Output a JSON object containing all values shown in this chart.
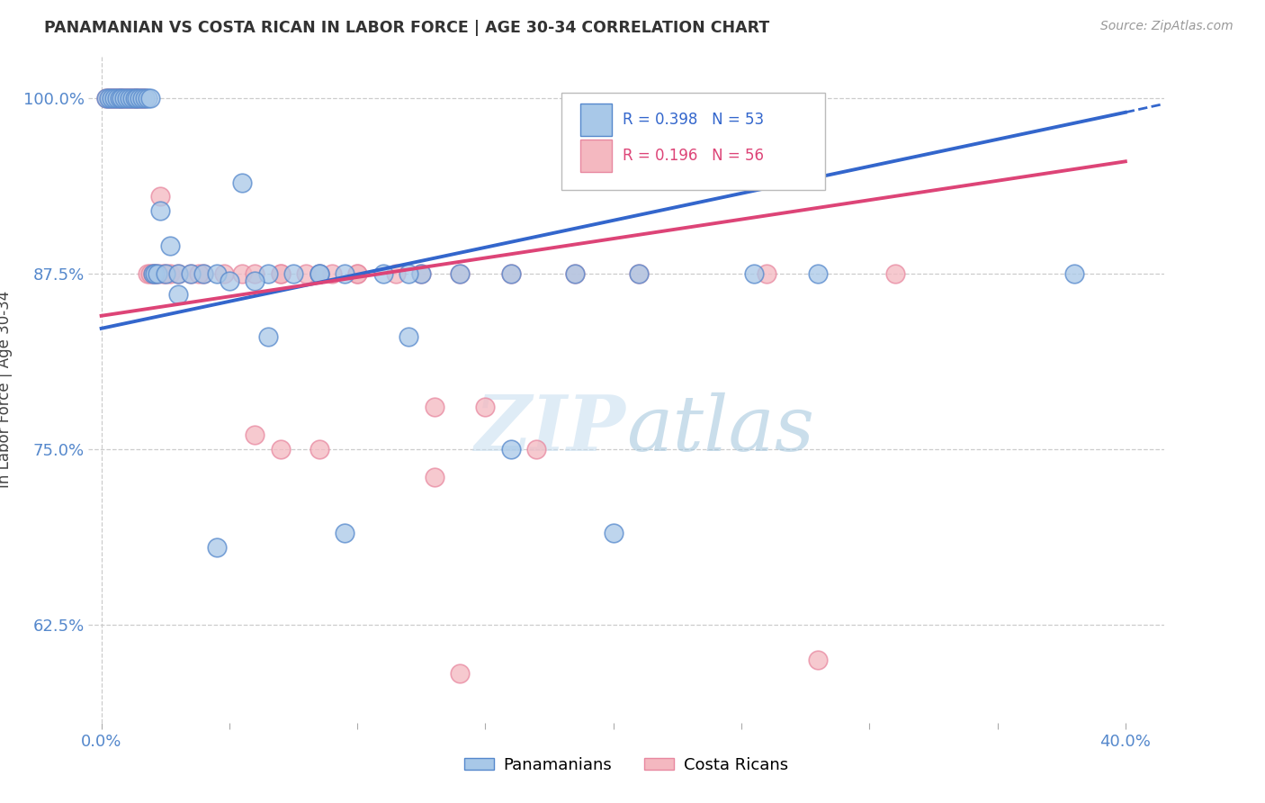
{
  "title": "PANAMANIAN VS COSTA RICAN IN LABOR FORCE | AGE 30-34 CORRELATION CHART",
  "source": "Source: ZipAtlas.com",
  "ylabel": "In Labor Force | Age 30-34",
  "ytick_labels": [
    "100.0%",
    "87.5%",
    "75.0%",
    "62.5%"
  ],
  "ytick_values": [
    1.0,
    0.875,
    0.75,
    0.625
  ],
  "xtick_labels": [
    "0.0%",
    "",
    "",
    "",
    "",
    "",
    "",
    "",
    "40.0%"
  ],
  "xtick_positions": [
    0.0,
    0.05,
    0.1,
    0.15,
    0.2,
    0.25,
    0.3,
    0.35,
    0.4
  ],
  "xlim": [
    -0.005,
    0.415
  ],
  "ylim": [
    0.555,
    1.03
  ],
  "legend_blue_r": "R = 0.398",
  "legend_blue_n": "N = 53",
  "legend_pink_r": "R = 0.196",
  "legend_pink_n": "N = 56",
  "blue_scatter_color": "#a8c8e8",
  "blue_edge_color": "#5588cc",
  "pink_scatter_color": "#f4b8c0",
  "pink_edge_color": "#e888a0",
  "line_blue_color": "#3366cc",
  "line_pink_color": "#dd4477",
  "legend_text_blue": "#3366cc",
  "legend_text_pink": "#dd4477",
  "watermark_zip": "#c8dff0",
  "watermark_atlas": "#b0cce0",
  "blue_x": [
    0.002,
    0.003,
    0.004,
    0.005,
    0.006,
    0.007,
    0.008,
    0.009,
    0.01,
    0.011,
    0.012,
    0.013,
    0.014,
    0.015,
    0.016,
    0.017,
    0.018,
    0.019,
    0.02,
    0.021,
    0.022,
    0.023,
    0.025,
    0.027,
    0.03,
    0.035,
    0.04,
    0.045,
    0.055,
    0.065,
    0.075,
    0.085,
    0.095,
    0.11,
    0.125,
    0.14,
    0.16,
    0.185,
    0.21,
    0.255,
    0.085,
    0.06,
    0.05,
    0.03,
    0.12,
    0.16,
    0.2,
    0.28,
    0.38,
    0.12,
    0.095,
    0.065,
    0.045
  ],
  "blue_y": [
    1.0,
    1.0,
    1.0,
    1.0,
    1.0,
    1.0,
    1.0,
    1.0,
    1.0,
    1.0,
    1.0,
    1.0,
    1.0,
    1.0,
    1.0,
    1.0,
    1.0,
    1.0,
    0.875,
    0.875,
    0.875,
    0.92,
    0.875,
    0.895,
    0.875,
    0.875,
    0.875,
    0.875,
    0.94,
    0.875,
    0.875,
    0.875,
    0.875,
    0.875,
    0.875,
    0.875,
    0.875,
    0.875,
    0.875,
    0.875,
    0.875,
    0.87,
    0.87,
    0.86,
    0.875,
    0.75,
    0.69,
    0.875,
    0.875,
    0.83,
    0.69,
    0.83,
    0.68
  ],
  "pink_x": [
    0.002,
    0.003,
    0.004,
    0.005,
    0.006,
    0.007,
    0.008,
    0.009,
    0.01,
    0.011,
    0.012,
    0.013,
    0.014,
    0.015,
    0.016,
    0.017,
    0.018,
    0.019,
    0.02,
    0.021,
    0.022,
    0.023,
    0.024,
    0.025,
    0.027,
    0.03,
    0.035,
    0.04,
    0.055,
    0.07,
    0.08,
    0.09,
    0.1,
    0.125,
    0.14,
    0.16,
    0.185,
    0.21,
    0.26,
    0.31,
    0.038,
    0.048,
    0.06,
    0.07,
    0.085,
    0.1,
    0.115,
    0.13,
    0.15,
    0.17,
    0.06,
    0.07,
    0.085,
    0.13,
    0.14,
    0.28
  ],
  "pink_y": [
    1.0,
    1.0,
    1.0,
    1.0,
    1.0,
    1.0,
    1.0,
    1.0,
    1.0,
    1.0,
    1.0,
    1.0,
    1.0,
    1.0,
    1.0,
    1.0,
    0.875,
    0.875,
    0.875,
    0.875,
    0.875,
    0.93,
    0.875,
    0.875,
    0.875,
    0.875,
    0.875,
    0.875,
    0.875,
    0.875,
    0.875,
    0.875,
    0.875,
    0.875,
    0.875,
    0.875,
    0.875,
    0.875,
    0.875,
    0.875,
    0.875,
    0.875,
    0.875,
    0.875,
    0.875,
    0.875,
    0.875,
    0.78,
    0.78,
    0.75,
    0.76,
    0.75,
    0.75,
    0.73,
    0.59,
    0.6
  ],
  "line_blue_x0": 0.0,
  "line_blue_y0": 0.836,
  "line_blue_x1": 0.4,
  "line_blue_y1": 0.99,
  "line_blue_dash_x1": 0.415,
  "line_blue_dash_y1": 0.996,
  "line_pink_x0": 0.0,
  "line_pink_y0": 0.845,
  "line_pink_x1": 0.4,
  "line_pink_y1": 0.955
}
